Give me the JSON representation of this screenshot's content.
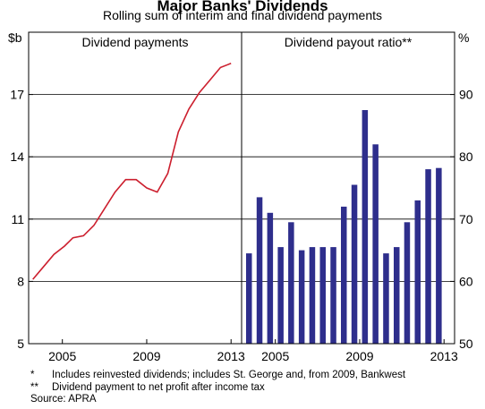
{
  "title": "Major Banks' Dividends",
  "subtitle": "Rolling sum of interim and final dividend payments",
  "chart_data": [
    {
      "type": "line",
      "title": "Dividend payments",
      "unit": "$b",
      "ylim": [
        5,
        20
      ],
      "yticks": [
        5,
        8,
        11,
        14,
        17
      ],
      "xticks": [
        "2005",
        "2009",
        "2013"
      ],
      "xtick_values": [
        2005,
        2009,
        2013
      ],
      "xlim": [
        2003.4,
        2013.5
      ],
      "series": [
        {
          "color": "#cc1f2e",
          "x": [
            2003.6,
            2004.1,
            2004.6,
            2005.1,
            2005.5,
            2006.0,
            2006.5,
            2007.0,
            2007.5,
            2008.0,
            2008.5,
            2009.0,
            2009.5,
            2010.0,
            2010.5,
            2011.0,
            2011.5,
            2012.0,
            2012.5,
            2013.0
          ],
          "y": [
            8.1,
            8.7,
            9.3,
            9.7,
            10.1,
            10.2,
            10.7,
            11.5,
            12.3,
            12.9,
            12.9,
            12.5,
            12.3,
            13.2,
            15.2,
            16.3,
            17.1,
            17.7,
            18.3,
            18.5
          ]
        }
      ]
    },
    {
      "type": "bar",
      "title": "Dividend payout ratio**",
      "unit": "%",
      "ylim": [
        50,
        100
      ],
      "yticks": [
        50,
        60,
        70,
        80,
        90
      ],
      "xticks": [
        "2005",
        "2009",
        "2013"
      ],
      "xtick_values": [
        2005,
        2009,
        2013
      ],
      "xlim": [
        2003.4,
        2013.5
      ],
      "bar_color": "#2e2e8c",
      "x": [
        2003.75,
        2004.25,
        2004.75,
        2005.25,
        2005.75,
        2006.25,
        2006.75,
        2007.25,
        2007.75,
        2008.25,
        2008.75,
        2009.25,
        2009.75,
        2010.25,
        2010.75,
        2011.25,
        2011.75,
        2012.25,
        2012.75
      ],
      "values": [
        64.5,
        73.5,
        71.0,
        65.5,
        69.5,
        65.0,
        65.5,
        65.5,
        65.5,
        72.0,
        75.5,
        87.5,
        82.0,
        64.5,
        65.5,
        69.5,
        73.0,
        78.0,
        78.2
      ]
    }
  ],
  "footnotes": [
    {
      "mark": "*",
      "text": "Includes reinvested dividends; includes St. George and, from 2009, Bankwest"
    },
    {
      "mark": "**",
      "text": "Dividend payment to net profit after income tax"
    }
  ],
  "source": "Source: APRA"
}
